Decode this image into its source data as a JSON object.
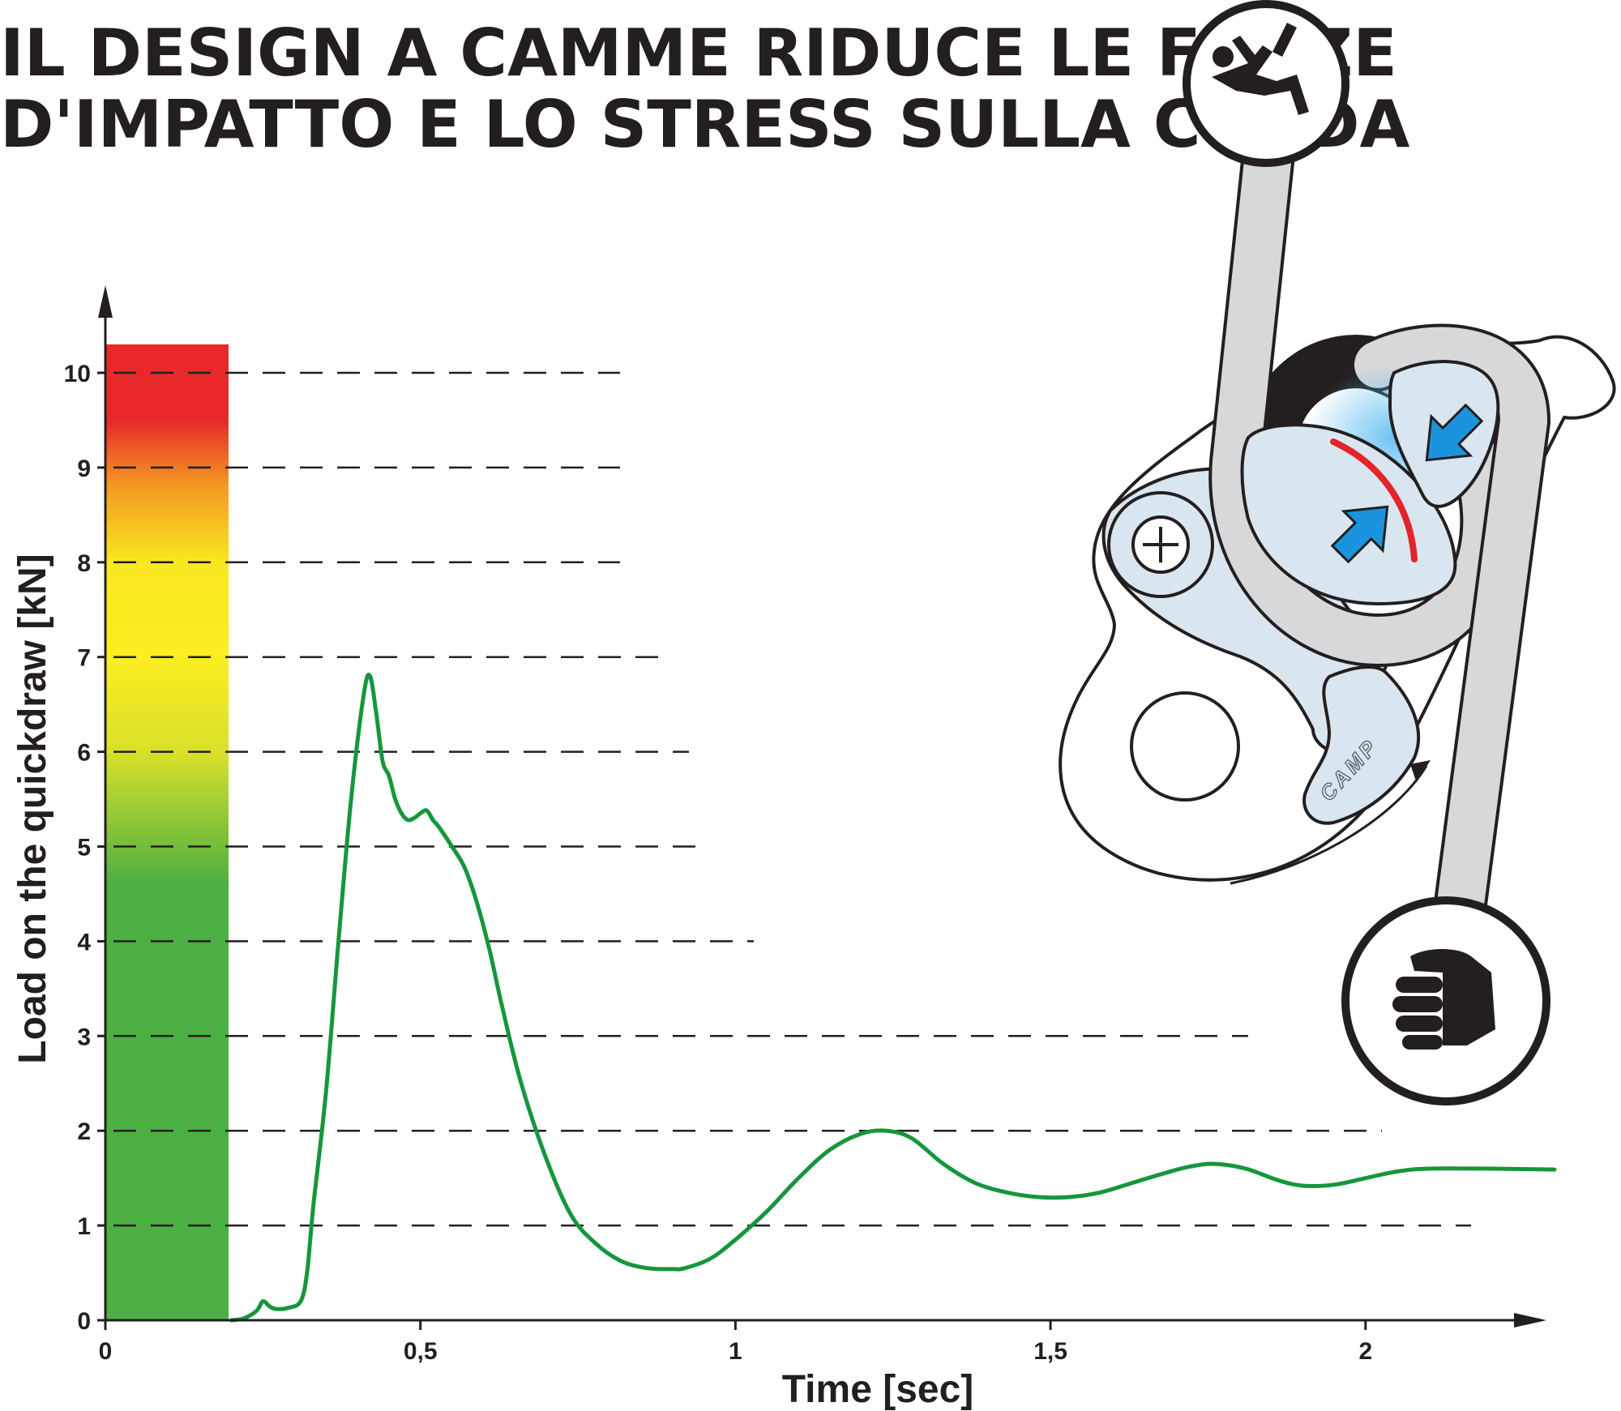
{
  "title": {
    "line1": "IL DESIGN A CAMME RIDUCE LE FORZE",
    "line2": "D'IMPATTO E LO STRESS SULLA CORDA"
  },
  "device": {
    "brand": "CAMP",
    "icons": [
      "falling-climber-icon",
      "belayer-hand-icon"
    ],
    "accent_color": "#1a95dd",
    "friction_color": "#e3242b"
  },
  "chart_data": {
    "type": "line",
    "xlabel": "Time [sec]",
    "ylabel": "Load on the quickdraw [kN]",
    "xlim": [
      0,
      2.3
    ],
    "ylim": [
      0,
      10.3
    ],
    "x_ticks": [
      {
        "value": 0,
        "label": "0"
      },
      {
        "value": 0.5,
        "label": "0,5"
      },
      {
        "value": 1,
        "label": "1"
      },
      {
        "value": 1.5,
        "label": "1,5"
      },
      {
        "value": 2,
        "label": "2"
      }
    ],
    "y_ticks": [
      {
        "value": 0,
        "label": "0"
      },
      {
        "value": 1,
        "label": "1"
      },
      {
        "value": 2,
        "label": "2"
      },
      {
        "value": 3,
        "label": "3"
      },
      {
        "value": 4,
        "label": "4"
      },
      {
        "value": 5,
        "label": "5"
      },
      {
        "value": 6,
        "label": "6"
      },
      {
        "value": 7,
        "label": "7"
      },
      {
        "value": 8,
        "label": "8"
      },
      {
        "value": 9,
        "label": "9"
      },
      {
        "value": 10,
        "label": "10"
      }
    ],
    "grid": "dashed horizontal",
    "color_scale": {
      "range": [
        0,
        10.3
      ],
      "stops": [
        {
          "value": 0,
          "color": "#4caf43"
        },
        {
          "value": 4.6,
          "color": "#4caf43"
        },
        {
          "value": 6.0,
          "color": "#d9e02a"
        },
        {
          "value": 7.0,
          "color": "#fbee21"
        },
        {
          "value": 8.0,
          "color": "#f9e71f"
        },
        {
          "value": 8.8,
          "color": "#f49a22"
        },
        {
          "value": 9.5,
          "color": "#e8282b"
        },
        {
          "value": 10.3,
          "color": "#e8282b"
        }
      ]
    },
    "series": [
      {
        "color": "#16963c",
        "x": [
          0.2,
          0.22,
          0.24,
          0.25,
          0.26,
          0.27,
          0.29,
          0.31,
          0.32,
          0.33,
          0.35,
          0.37,
          0.39,
          0.41,
          0.42,
          0.43,
          0.44,
          0.45,
          0.46,
          0.47,
          0.48,
          0.49,
          0.5,
          0.51,
          0.52,
          0.53,
          0.55,
          0.57,
          0.59,
          0.61,
          0.63,
          0.66,
          0.7,
          0.74,
          0.78,
          0.82,
          0.86,
          0.9,
          0.92,
          0.96,
          1.0,
          1.05,
          1.1,
          1.15,
          1.2,
          1.24,
          1.28,
          1.33,
          1.38,
          1.43,
          1.48,
          1.53,
          1.58,
          1.63,
          1.68,
          1.72,
          1.76,
          1.81,
          1.86,
          1.9,
          1.95,
          2.0,
          2.05,
          2.1,
          2.2,
          2.3
        ],
        "y": [
          0.0,
          0.02,
          0.1,
          0.2,
          0.15,
          0.12,
          0.13,
          0.2,
          0.5,
          1.2,
          2.4,
          4.0,
          5.5,
          6.6,
          6.8,
          6.4,
          5.9,
          5.75,
          5.5,
          5.35,
          5.28,
          5.3,
          5.35,
          5.38,
          5.28,
          5.2,
          5.0,
          4.78,
          4.4,
          3.9,
          3.3,
          2.5,
          1.7,
          1.1,
          0.8,
          0.62,
          0.55,
          0.54,
          0.55,
          0.65,
          0.85,
          1.15,
          1.5,
          1.8,
          1.97,
          2.0,
          1.92,
          1.65,
          1.45,
          1.35,
          1.3,
          1.3,
          1.35,
          1.45,
          1.55,
          1.62,
          1.65,
          1.6,
          1.48,
          1.42,
          1.43,
          1.5,
          1.57,
          1.6,
          1.6,
          1.59
        ]
      }
    ]
  }
}
